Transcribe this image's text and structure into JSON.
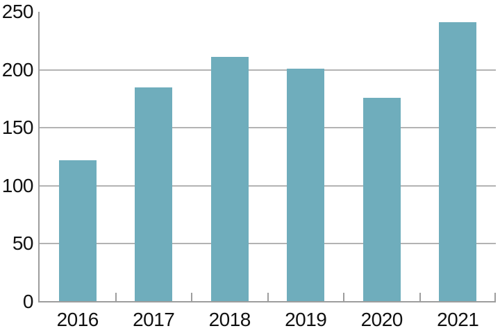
{
  "chart_data": {
    "type": "bar",
    "title": "",
    "xlabel": "",
    "ylabel": "",
    "categories": [
      "2016",
      "2017",
      "2018",
      "2019",
      "2020",
      "2021"
    ],
    "values": [
      122,
      185,
      211,
      201,
      176,
      241
    ],
    "ylim": [
      0,
      250
    ],
    "y_ticks": [
      0,
      50,
      100,
      150,
      200,
      250
    ],
    "gridline_values": [
      50,
      100,
      150,
      200
    ],
    "grid": "horizontal-only",
    "legend_position": "none",
    "bar_color": "#6FADBC",
    "gridline_color": "#B3B3B3",
    "axis_color": "#9D9D9D",
    "text_color": "#111111",
    "background_color": "#FFFFFF"
  }
}
